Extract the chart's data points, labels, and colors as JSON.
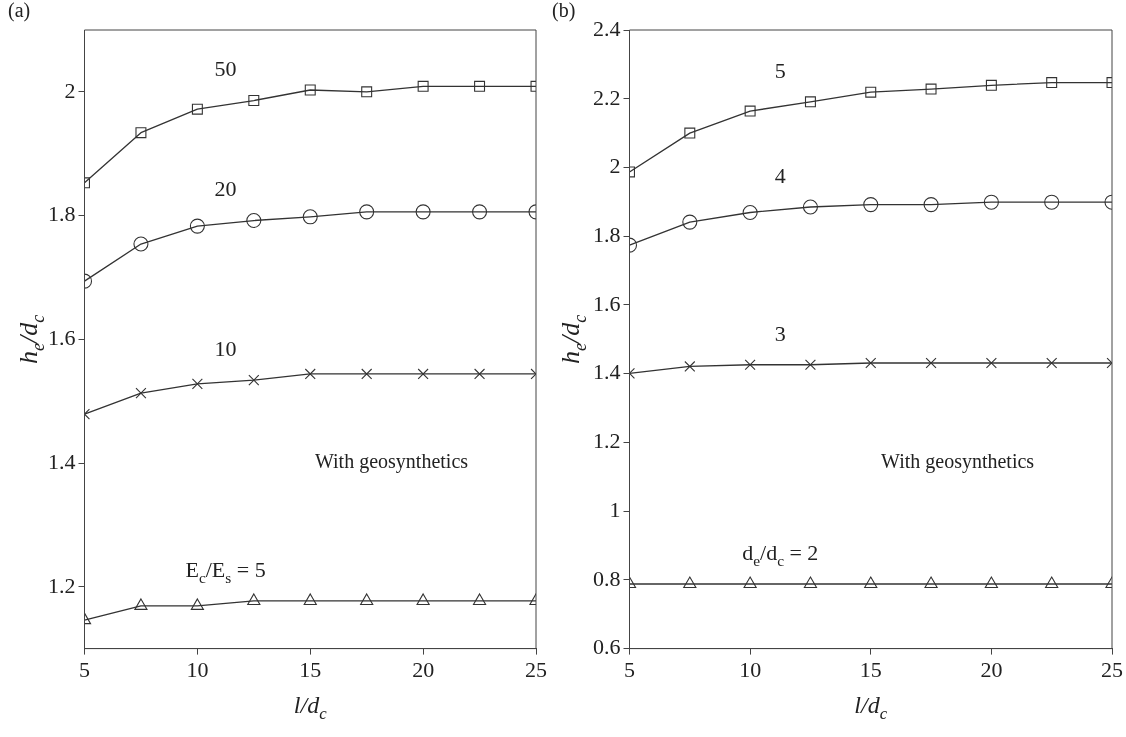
{
  "chart_data": [
    {
      "type": "line",
      "title": "(a)",
      "xlabel": "l/d$_{c}$",
      "ylabel": "h$_{e}$/d$_{c}$",
      "x": [
        5,
        7.5,
        10,
        12.5,
        15,
        17.5,
        20,
        22.5,
        25
      ],
      "xlim": [
        5,
        25
      ],
      "xticks": [
        5,
        10,
        15,
        20,
        25
      ],
      "ylim": [
        1.1,
        2.1
      ],
      "yticks": [
        1.2,
        1.4,
        1.6,
        1.8,
        2
      ],
      "grid": false,
      "legend": false,
      "series": [
        {
          "name": "50",
          "color": "#333333",
          "marker": "square",
          "values": [
            1.853,
            1.934,
            1.972,
            1.986,
            2.003,
            2.0,
            2.009,
            2.009,
            2.009
          ]
        },
        {
          "name": "20",
          "color": "#333333",
          "marker": "circle",
          "values": [
            1.694,
            1.754,
            1.783,
            1.792,
            1.798,
            1.806,
            1.806,
            1.806,
            1.806
          ]
        },
        {
          "name": "10",
          "color": "#333333",
          "marker": "cross",
          "values": [
            1.479,
            1.513,
            1.528,
            1.534,
            1.544,
            1.544,
            1.544,
            1.544,
            1.544
          ]
        },
        {
          "name": "E$_{c}$/E$_{s}$ = 5",
          "color": "#333333",
          "marker": "triangle",
          "values": [
            1.146,
            1.169,
            1.169,
            1.177,
            1.177,
            1.177,
            1.177,
            1.177,
            1.177
          ]
        }
      ],
      "annotations": [
        "With geosynthetics"
      ]
    },
    {
      "type": "line",
      "title": "(b)",
      "xlabel": "l/d$_{c}$",
      "ylabel": "h$_{e}$/d$_{c}$",
      "x": [
        5,
        7.5,
        10,
        12.5,
        15,
        17.5,
        20,
        22.5,
        25
      ],
      "xlim": [
        5,
        25
      ],
      "xticks": [
        5,
        10,
        15,
        20,
        25
      ],
      "ylim": [
        0.6,
        2.4
      ],
      "yticks": [
        0.6,
        0.8,
        1,
        1.2,
        1.4,
        1.6,
        1.8,
        2,
        2.2,
        2.4
      ],
      "grid": false,
      "legend": false,
      "series": [
        {
          "name": "5",
          "color": "#333333",
          "marker": "square",
          "values": [
            1.987,
            2.1,
            2.164,
            2.191,
            2.219,
            2.228,
            2.239,
            2.247,
            2.247
          ]
        },
        {
          "name": "4",
          "color": "#333333",
          "marker": "circle",
          "values": [
            1.774,
            1.841,
            1.869,
            1.885,
            1.892,
            1.892,
            1.899,
            1.899,
            1.899
          ]
        },
        {
          "name": "3",
          "color": "#333333",
          "marker": "cross",
          "values": [
            1.401,
            1.421,
            1.426,
            1.426,
            1.431,
            1.431,
            1.431,
            1.431,
            1.431
          ]
        },
        {
          "name": "d$_{e}$/d$_{c}$ = 2",
          "color": "#333333",
          "marker": "triangle",
          "values": [
            0.788,
            0.788,
            0.788,
            0.788,
            0.788,
            0.788,
            0.788,
            0.788,
            0.788
          ]
        }
      ],
      "annotations": [
        "With geosynthetics"
      ]
    }
  ]
}
